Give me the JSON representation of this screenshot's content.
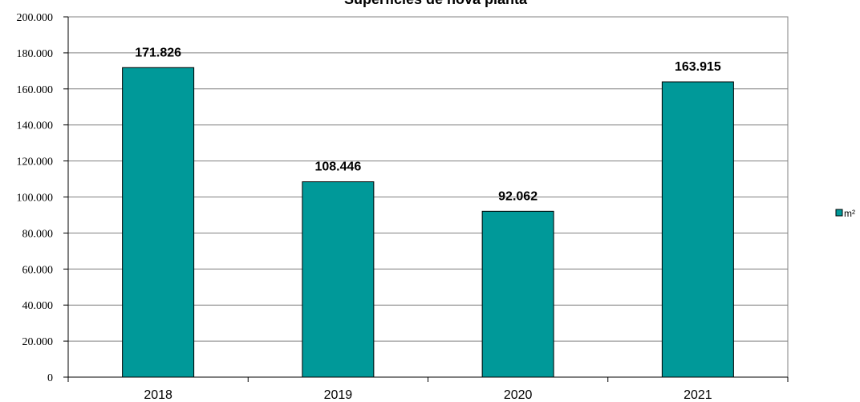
{
  "chart_data": {
    "type": "bar",
    "title": "Superficies de nova planta",
    "categories": [
      "2018",
      "2019",
      "2020",
      "2021"
    ],
    "series": [
      {
        "name": "m²",
        "values": [
          171826,
          108446,
          92062,
          163915
        ],
        "color": "#009999"
      }
    ],
    "data_labels": [
      "171.826",
      "108.446",
      "92.062",
      "163.915"
    ],
    "yticks": [
      "0",
      "20.000",
      "40.000",
      "60.000",
      "80.000",
      "100.000",
      "120.000",
      "140.000",
      "160.000",
      "180.000",
      "200.000"
    ],
    "ylim": [
      0,
      200000
    ],
    "ystep": 20000,
    "xlabel": "",
    "ylabel": "",
    "grid": true,
    "legend_position": "right",
    "plot_background": "#ffffff",
    "gridline_color": "#808080"
  }
}
